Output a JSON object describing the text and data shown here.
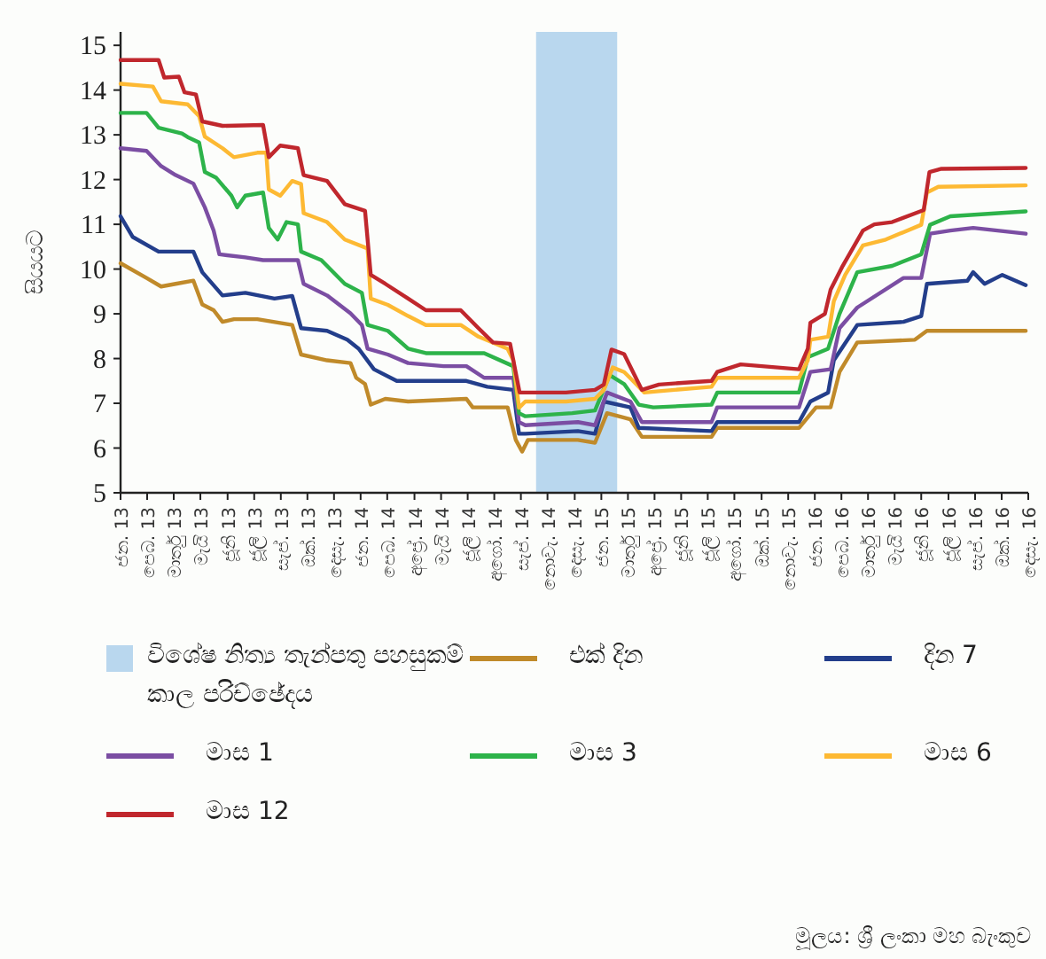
{
  "chart_data": {
    "type": "line",
    "ylabel": "සියයට",
    "xlim": [
      "2013-01-01",
      "2016-12-04"
    ],
    "ylim": [
      5,
      15.3
    ],
    "yticks": [
      5,
      6,
      7,
      8,
      9,
      10,
      11,
      12,
      13,
      14,
      15
    ],
    "grid": false,
    "legend": "bottom",
    "xticks": [
      {
        "value": "2013-01-01",
        "label": "ජන. 13"
      },
      {
        "value": "2013-02-12",
        "label": "පෙබ. 13"
      },
      {
        "value": "2013-03-26",
        "label": "මාර්තු 13"
      },
      {
        "value": "2013-05-07",
        "label": "මැයි 13"
      },
      {
        "value": "2013-06-19",
        "label": "ජූනි 13"
      },
      {
        "value": "2013-07-31",
        "label": "ජූලි 13"
      },
      {
        "value": "2013-09-11",
        "label": "සැප්. 13"
      },
      {
        "value": "2013-10-23",
        "label": "ඔක්. 13"
      },
      {
        "value": "2013-12-04",
        "label": "දෙසැ. 13"
      },
      {
        "value": "2014-01-15",
        "label": "ජන. 14"
      },
      {
        "value": "2014-02-26",
        "label": "පෙබ. 14"
      },
      {
        "value": "2014-04-10",
        "label": "අප්‍රේ. 14"
      },
      {
        "value": "2014-05-22",
        "label": "මැයි 14"
      },
      {
        "value": "2014-07-03",
        "label": "ජූලි 14"
      },
      {
        "value": "2014-08-14",
        "label": "අගෝ. 14"
      },
      {
        "value": "2014-09-25",
        "label": "සැප්. 14"
      },
      {
        "value": "2014-11-06",
        "label": "නොවැ. 14"
      },
      {
        "value": "2014-12-19",
        "label": "දෙසැ. 14"
      },
      {
        "value": "2015-01-30",
        "label": "ජන. 15"
      },
      {
        "value": "2015-03-13",
        "label": "මාර්තු 15"
      },
      {
        "value": "2015-04-24",
        "label": "අප්‍රේ. 15"
      },
      {
        "value": "2015-06-05",
        "label": "ජූනි 15"
      },
      {
        "value": "2015-07-17",
        "label": "ජූලි 15"
      },
      {
        "value": "2015-08-28",
        "label": "අගෝ. 15"
      },
      {
        "value": "2015-10-10",
        "label": "ඔක්. 15"
      },
      {
        "value": "2015-11-21",
        "label": "නොවැ. 15"
      },
      {
        "value": "2016-01-02",
        "label": "ජන. 16"
      },
      {
        "value": "2016-02-13",
        "label": "පෙබ. 16"
      },
      {
        "value": "2016-03-26",
        "label": "මාර්තු 16"
      },
      {
        "value": "2016-05-07",
        "label": "මැයි 16"
      },
      {
        "value": "2016-06-18",
        "label": "ජූනි 16"
      },
      {
        "value": "2016-07-31",
        "label": "ජූලි 16"
      },
      {
        "value": "2016-09-11",
        "label": "සැප්. 16"
      },
      {
        "value": "2016-10-23",
        "label": "ඔක්. 16"
      },
      {
        "value": "2016-12-04",
        "label": "දෙසැ. 16"
      }
    ],
    "bands": [
      {
        "axis": "x",
        "from": "2014-10-19",
        "to": "2015-02-24",
        "label": "විශේෂ නිත්‍ය තැන්පතු පහසුකම් කාල පරිච්ඡේදය",
        "color": "#b9d7ee"
      }
    ],
    "series": [
      {
        "name": "එක් දින",
        "color": "#c08a2a",
        "x": [
          "2013-01-01",
          "2013-02-11",
          "2013-03-06",
          "2013-03-29",
          "2013-04-26",
          "2013-05-10",
          "2013-05-28",
          "2013-06-11",
          "2013-06-29",
          "2013-08-05",
          "2013-09-29",
          "2013-10-13",
          "2013-11-23",
          "2013-12-30",
          "2014-01-08",
          "2014-01-22",
          "2014-01-31",
          "2014-02-23",
          "2014-03-31",
          "2014-07-01",
          "2014-07-11",
          "2014-09-04",
          "2014-09-17",
          "2014-09-27",
          "2014-10-06",
          "2014-12-24",
          "2015-01-20",
          "2015-02-08",
          "2015-03-17",
          "2015-04-04",
          "2015-07-23",
          "2015-08-01",
          "2015-12-08",
          "2016-01-04",
          "2016-01-27",
          "2016-02-10",
          "2016-03-09",
          "2016-06-08",
          "2016-06-27",
          "2016-11-30"
        ],
        "values": [
          10.13,
          9.8,
          9.61,
          9.67,
          9.74,
          9.21,
          9.08,
          8.82,
          8.88,
          8.88,
          8.75,
          8.09,
          7.96,
          7.9,
          7.57,
          7.43,
          6.97,
          7.1,
          7.04,
          7.1,
          6.91,
          6.91,
          6.18,
          5.92,
          6.18,
          6.18,
          6.12,
          6.78,
          6.64,
          6.25,
          6.25,
          6.45,
          6.45,
          6.91,
          6.91,
          7.7,
          8.36,
          8.42,
          8.62,
          8.62
        ]
      },
      {
        "name": "දින 7",
        "color": "#233e8b",
        "x": [
          "2013-01-01",
          "2013-01-20",
          "2013-03-02",
          "2013-04-26",
          "2013-05-10",
          "2013-06-11",
          "2013-07-17",
          "2013-09-01",
          "2013-09-29",
          "2013-10-13",
          "2013-11-23",
          "2013-12-25",
          "2014-01-12",
          "2014-02-05",
          "2014-03-13",
          "2014-07-01",
          "2014-08-03",
          "2014-09-13",
          "2014-09-22",
          "2014-10-02",
          "2014-12-24",
          "2015-01-20",
          "2015-02-03",
          "2015-03-17",
          "2015-03-30",
          "2015-07-23",
          "2015-08-01",
          "2015-12-08",
          "2015-12-26",
          "2016-01-23",
          "2016-02-01",
          "2016-03-09",
          "2016-05-21",
          "2016-06-18",
          "2016-06-27",
          "2016-08-30",
          "2016-09-08",
          "2016-09-26",
          "2016-10-24",
          "2016-11-30"
        ],
        "values": [
          11.18,
          10.72,
          10.39,
          10.39,
          9.93,
          9.41,
          9.47,
          9.34,
          9.4,
          8.68,
          8.62,
          8.42,
          8.22,
          7.76,
          7.5,
          7.5,
          7.37,
          7.3,
          6.32,
          6.32,
          6.38,
          6.32,
          7.04,
          6.91,
          6.45,
          6.38,
          6.58,
          6.58,
          7.04,
          7.24,
          7.96,
          8.75,
          8.82,
          8.95,
          9.67,
          9.74,
          9.93,
          9.67,
          9.87,
          9.64
        ]
      },
      {
        "name": "මාස 1",
        "color": "#7b4ea3",
        "x": [
          "2013-01-01",
          "2013-02-11",
          "2013-03-06",
          "2013-03-29",
          "2013-04-26",
          "2013-05-14",
          "2013-05-28",
          "2013-06-06",
          "2013-07-17",
          "2013-08-14",
          "2013-09-10",
          "2013-10-08",
          "2013-10-17",
          "2013-11-23",
          "2013-12-30",
          "2014-01-17",
          "2014-01-26",
          "2014-02-27",
          "2014-03-31",
          "2014-05-26",
          "2014-07-01",
          "2014-07-29",
          "2014-09-13",
          "2014-09-22",
          "2014-10-02",
          "2014-12-24",
          "2015-01-20",
          "2015-02-08",
          "2015-03-17",
          "2015-04-04",
          "2015-07-23",
          "2015-08-01",
          "2015-10-23",
          "2015-12-08",
          "2015-12-26",
          "2016-01-27",
          "2016-02-10",
          "2016-03-09",
          "2016-05-21",
          "2016-06-18",
          "2016-07-02",
          "2016-08-03",
          "2016-09-08",
          "2016-11-30"
        ],
        "values": [
          12.7,
          12.64,
          12.3,
          12.1,
          11.91,
          11.38,
          10.86,
          10.33,
          10.26,
          10.2,
          10.2,
          10.2,
          9.67,
          9.41,
          9.01,
          8.75,
          8.22,
          8.09,
          7.9,
          7.83,
          7.83,
          7.57,
          7.57,
          6.58,
          6.51,
          6.58,
          6.51,
          7.24,
          7.04,
          6.58,
          6.58,
          6.91,
          6.91,
          6.91,
          7.7,
          7.76,
          8.68,
          9.14,
          9.8,
          9.8,
          10.79,
          10.86,
          10.92,
          10.79
        ]
      },
      {
        "name": "මාස 3",
        "color": "#2db34a",
        "x": [
          "2013-01-01",
          "2013-02-11",
          "2013-03-02",
          "2013-04-08",
          "2013-04-17",
          "2013-05-05",
          "2013-05-14",
          "2013-06-01",
          "2013-06-25",
          "2013-07-04",
          "2013-07-17",
          "2013-08-14",
          "2013-08-23",
          "2013-09-06",
          "2013-09-20",
          "2013-10-08",
          "2013-10-13",
          "2013-11-14",
          "2013-12-21",
          "2014-01-17",
          "2014-01-26",
          "2014-02-27",
          "2014-03-31",
          "2014-04-28",
          "2014-07-29",
          "2014-09-13",
          "2014-09-22",
          "2014-10-02",
          "2014-12-15",
          "2015-01-20",
          "2015-02-12",
          "2015-03-07",
          "2015-03-30",
          "2015-04-22",
          "2015-07-23",
          "2015-08-01",
          "2015-11-29",
          "2015-12-08",
          "2015-12-22",
          "2016-01-23",
          "2016-02-10",
          "2016-03-09",
          "2016-05-03",
          "2016-06-18",
          "2016-07-02",
          "2016-08-03",
          "2016-11-30"
        ],
        "values": [
          13.49,
          13.49,
          13.16,
          13.03,
          12.95,
          12.83,
          12.17,
          12.04,
          11.64,
          11.38,
          11.64,
          11.71,
          10.92,
          10.66,
          11.05,
          11.0,
          10.39,
          10.2,
          9.67,
          9.47,
          8.75,
          8.62,
          8.22,
          8.12,
          8.12,
          7.83,
          6.78,
          6.71,
          6.78,
          6.84,
          7.63,
          7.43,
          6.97,
          6.91,
          6.97,
          7.24,
          7.24,
          7.24,
          8.03,
          8.22,
          9.0,
          9.93,
          10.07,
          10.33,
          10.99,
          11.18,
          11.29
        ]
      },
      {
        "name": "මාස 6",
        "color": "#fdb933",
        "x": [
          "2013-01-01",
          "2013-02-21",
          "2013-03-06",
          "2013-04-17",
          "2013-05-05",
          "2013-05-14",
          "2013-06-11",
          "2013-06-29",
          "2013-08-05",
          "2013-08-19",
          "2013-08-23",
          "2013-09-10",
          "2013-09-29",
          "2013-10-13",
          "2013-10-17",
          "2013-11-23",
          "2013-12-21",
          "2014-01-26",
          "2014-01-31",
          "2014-02-27",
          "2014-03-31",
          "2014-04-28",
          "2014-06-22",
          "2014-07-20",
          "2014-09-04",
          "2014-09-13",
          "2014-09-22",
          "2014-10-02",
          "2014-12-05",
          "2015-01-20",
          "2015-02-03",
          "2015-02-17",
          "2015-03-07",
          "2015-03-21",
          "2015-04-08",
          "2015-05-01",
          "2015-07-23",
          "2015-08-01",
          "2015-12-08",
          "2015-12-22",
          "2015-12-26",
          "2016-01-23",
          "2016-02-01",
          "2016-02-19",
          "2016-03-18",
          "2016-04-23",
          "2016-06-18",
          "2016-06-27",
          "2016-07-15",
          "2016-11-30"
        ],
        "values": [
          14.14,
          14.08,
          13.75,
          13.68,
          13.42,
          12.96,
          12.7,
          12.5,
          12.6,
          12.6,
          11.78,
          11.64,
          11.97,
          11.9,
          11.25,
          11.05,
          10.66,
          10.46,
          9.34,
          9.2,
          8.95,
          8.75,
          8.75,
          8.49,
          8.22,
          7.96,
          6.9,
          7.04,
          7.04,
          7.1,
          7.3,
          7.8,
          7.7,
          7.5,
          7.24,
          7.27,
          7.37,
          7.57,
          7.57,
          7.96,
          8.42,
          8.49,
          9.28,
          9.87,
          10.53,
          10.66,
          10.99,
          11.71,
          11.84,
          11.87
        ]
      },
      {
        "name": "මාස 12",
        "color": "#c0272d",
        "x": [
          "2013-01-01",
          "2013-03-02",
          "2013-03-11",
          "2013-04-03",
          "2013-04-12",
          "2013-04-30",
          "2013-05-10",
          "2013-06-11",
          "2013-08-14",
          "2013-08-23",
          "2013-09-10",
          "2013-10-08",
          "2013-10-17",
          "2013-11-23",
          "2013-12-21",
          "2014-01-22",
          "2014-01-31",
          "2014-02-23",
          "2014-03-31",
          "2014-04-28",
          "2014-06-22",
          "2014-07-20",
          "2014-08-12",
          "2014-09-08",
          "2014-09-23",
          "2014-12-05",
          "2015-01-20",
          "2015-02-03",
          "2015-02-15",
          "2015-03-07",
          "2015-03-21",
          "2015-04-04",
          "2015-05-01",
          "2015-07-23",
          "2015-08-01",
          "2015-09-07",
          "2015-12-08",
          "2015-12-22",
          "2015-12-26",
          "2016-01-18",
          "2016-01-27",
          "2016-02-15",
          "2016-03-18",
          "2016-04-05",
          "2016-05-03",
          "2016-06-22",
          "2016-07-01",
          "2016-07-20",
          "2016-11-30"
        ],
        "values": [
          14.67,
          14.67,
          14.28,
          14.3,
          13.95,
          13.9,
          13.3,
          13.2,
          13.22,
          12.5,
          12.76,
          12.7,
          12.1,
          11.97,
          11.45,
          11.3,
          9.87,
          9.67,
          9.34,
          9.08,
          9.08,
          8.68,
          8.36,
          8.33,
          7.24,
          7.24,
          7.3,
          7.42,
          8.2,
          8.1,
          7.7,
          7.3,
          7.42,
          7.5,
          7.7,
          7.87,
          7.76,
          8.22,
          8.8,
          9.0,
          9.54,
          10.07,
          10.86,
          11.0,
          11.05,
          11.32,
          12.17,
          12.24,
          12.26
        ]
      }
    ],
    "annotations": [
      "මූලය: ශ්‍රී ලංකා මහ බැංකුව"
    ]
  }
}
